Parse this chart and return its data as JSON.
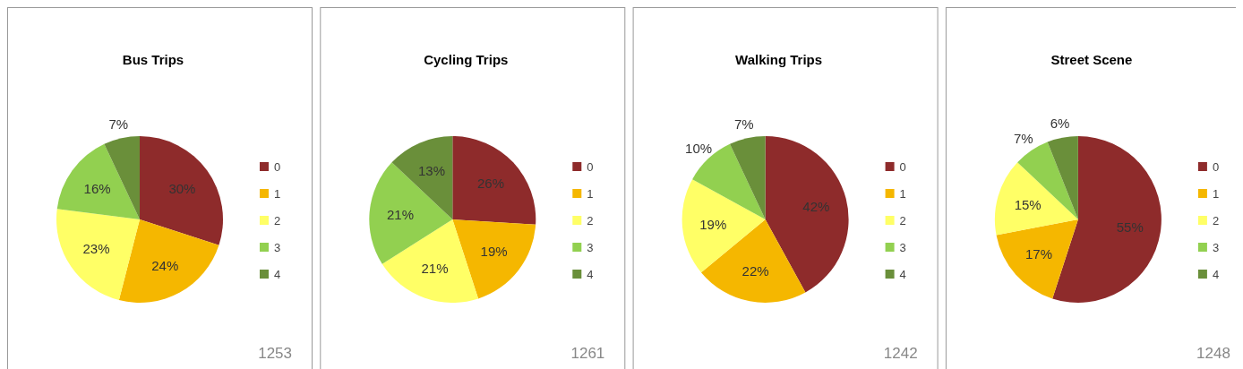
{
  "chart_data": [
    {
      "type": "pie",
      "title": "Bus Trips",
      "categories": [
        "0",
        "1",
        "2",
        "3",
        "4"
      ],
      "values": [
        30,
        24,
        23,
        16,
        7
      ],
      "value_labels": [
        "30%",
        "24%",
        "23%",
        "16%",
        "7%"
      ],
      "colors": [
        "#8e2b2b",
        "#f5b700",
        "#ffff66",
        "#92d050",
        "#6a8f3a"
      ],
      "legend": "right",
      "annotations": [
        "1253"
      ]
    },
    {
      "type": "pie",
      "title": "Cycling Trips",
      "categories": [
        "0",
        "1",
        "2",
        "3",
        "4"
      ],
      "values": [
        26,
        19,
        21,
        21,
        13
      ],
      "value_labels": [
        "26%",
        "19%",
        "21%",
        "21%",
        "13%"
      ],
      "colors": [
        "#8e2b2b",
        "#f5b700",
        "#ffff66",
        "#92d050",
        "#6a8f3a"
      ],
      "legend": "right",
      "annotations": [
        "1261"
      ]
    },
    {
      "type": "pie",
      "title": "Walking Trips",
      "categories": [
        "0",
        "1",
        "2",
        "3",
        "4"
      ],
      "values": [
        42,
        22,
        19,
        10,
        7
      ],
      "value_labels": [
        "42%",
        "22%",
        "19%",
        "10%",
        "7%"
      ],
      "colors": [
        "#8e2b2b",
        "#f5b700",
        "#ffff66",
        "#92d050",
        "#6a8f3a"
      ],
      "legend": "right",
      "annotations": [
        "1242"
      ]
    },
    {
      "type": "pie",
      "title": "Street Scene",
      "categories": [
        "0",
        "1",
        "2",
        "3",
        "4"
      ],
      "values": [
        55,
        17,
        15,
        7,
        6
      ],
      "value_labels": [
        "55%",
        "17%",
        "15%",
        "7%",
        "6%"
      ],
      "colors": [
        "#8e2b2b",
        "#f5b700",
        "#ffff66",
        "#92d050",
        "#6a8f3a"
      ],
      "legend": "right",
      "annotations": [
        "1248"
      ]
    }
  ]
}
